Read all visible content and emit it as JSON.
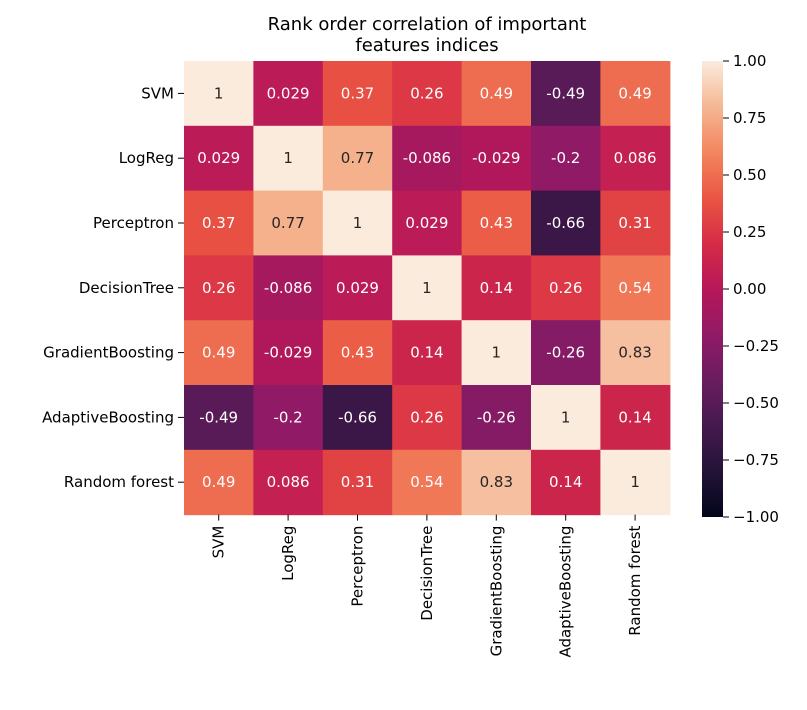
{
  "chart_data": {
    "type": "heatmap",
    "title": [
      "Rank order correlation of important",
      "features indices"
    ],
    "row_labels": [
      "SVM",
      "LogReg",
      "Perceptron",
      "DecisionTree",
      "GradientBoosting",
      "AdaptiveBoosting",
      "Random forest"
    ],
    "col_labels": [
      "SVM",
      "LogReg",
      "Perceptron",
      "DecisionTree",
      "GradientBoosting",
      "AdaptiveBoosting",
      "Random forest"
    ],
    "values": [
      [
        1,
        0.029,
        0.37,
        0.26,
        0.49,
        -0.49,
        0.49
      ],
      [
        0.029,
        1,
        0.77,
        -0.086,
        -0.029,
        -0.2,
        0.086
      ],
      [
        0.37,
        0.77,
        1,
        0.029,
        0.43,
        -0.66,
        0.31
      ],
      [
        0.26,
        -0.086,
        0.029,
        1,
        0.14,
        0.26,
        0.54
      ],
      [
        0.49,
        -0.029,
        0.43,
        0.14,
        1,
        -0.26,
        0.83
      ],
      [
        -0.49,
        -0.2,
        -0.66,
        0.26,
        -0.26,
        1,
        0.14
      ],
      [
        0.49,
        0.086,
        0.31,
        0.54,
        0.83,
        0.14,
        1
      ]
    ],
    "vmin": -1.0,
    "vmax": 1.0,
    "colormap": "rocket",
    "colorbar_ticks": [
      "1.00",
      "0.75",
      "0.50",
      "0.25",
      "0.00",
      "−0.25",
      "−0.50",
      "−0.75",
      "−1.00"
    ],
    "colorbar_tick_values": [
      1.0,
      0.75,
      0.5,
      0.25,
      0.0,
      -0.25,
      -0.5,
      -0.75,
      -1.0
    ]
  }
}
